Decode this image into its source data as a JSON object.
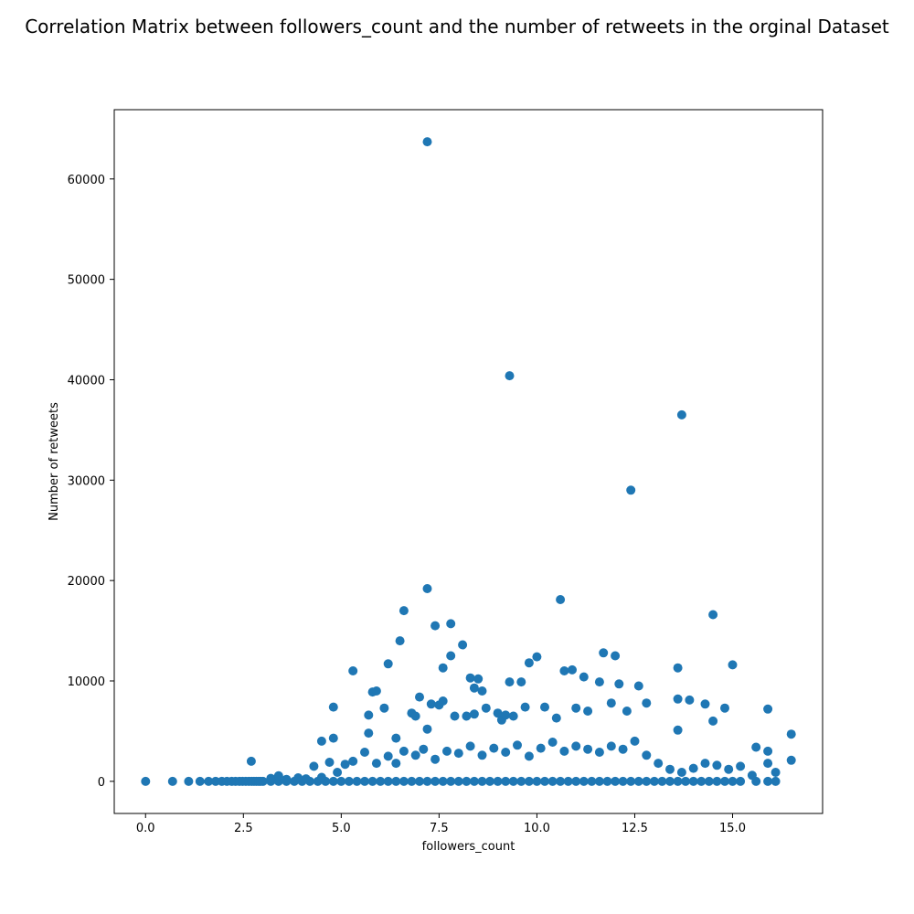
{
  "chart_data": {
    "type": "scatter",
    "title": "Correlation Matrix between followers_count and the number of retweets in the orginal Dataset",
    "xlabel": "followers_count",
    "ylabel": "Number of retweets",
    "xlim": [
      -0.8,
      17.3
    ],
    "ylim": [
      -3200,
      66900
    ],
    "xticks": [
      0.0,
      2.5,
      5.0,
      7.5,
      10.0,
      12.5,
      15.0
    ],
    "xtick_labels": [
      "0.0",
      "2.5",
      "5.0",
      "7.5",
      "10.0",
      "12.5",
      "15.0"
    ],
    "yticks": [
      0,
      10000,
      20000,
      30000,
      40000,
      50000,
      60000
    ],
    "ytick_labels": [
      "0",
      "10000",
      "20000",
      "30000",
      "40000",
      "50000",
      "60000"
    ],
    "grid": false,
    "color": "#1f77b4",
    "series": [
      {
        "points": [
          [
            0.0,
            0
          ],
          [
            0.69,
            0
          ],
          [
            1.1,
            0
          ],
          [
            1.39,
            0
          ],
          [
            1.61,
            0
          ],
          [
            1.79,
            0
          ],
          [
            1.95,
            0
          ],
          [
            2.08,
            0
          ],
          [
            2.2,
            0
          ],
          [
            2.3,
            0
          ],
          [
            2.4,
            0
          ],
          [
            2.48,
            0
          ],
          [
            2.56,
            0
          ],
          [
            2.64,
            0
          ],
          [
            2.71,
            0
          ],
          [
            2.77,
            0
          ],
          [
            2.83,
            0
          ],
          [
            2.89,
            0
          ],
          [
            2.94,
            0
          ],
          [
            3.0,
            0
          ],
          [
            3.2,
            0
          ],
          [
            3.4,
            0
          ],
          [
            3.6,
            0
          ],
          [
            3.8,
            0
          ],
          [
            4.0,
            0
          ],
          [
            4.2,
            0
          ],
          [
            4.4,
            0
          ],
          [
            4.6,
            0
          ],
          [
            4.8,
            0
          ],
          [
            5.0,
            0
          ],
          [
            5.2,
            0
          ],
          [
            5.4,
            0
          ],
          [
            5.6,
            0
          ],
          [
            5.8,
            0
          ],
          [
            6.0,
            0
          ],
          [
            6.2,
            0
          ],
          [
            6.4,
            0
          ],
          [
            6.6,
            0
          ],
          [
            6.8,
            0
          ],
          [
            7.0,
            0
          ],
          [
            7.2,
            0
          ],
          [
            7.4,
            0
          ],
          [
            7.6,
            0
          ],
          [
            7.8,
            0
          ],
          [
            8.0,
            0
          ],
          [
            8.2,
            0
          ],
          [
            8.4,
            0
          ],
          [
            8.6,
            0
          ],
          [
            8.8,
            0
          ],
          [
            9.0,
            0
          ],
          [
            9.2,
            0
          ],
          [
            9.4,
            0
          ],
          [
            9.6,
            0
          ],
          [
            9.8,
            0
          ],
          [
            10.0,
            0
          ],
          [
            10.2,
            0
          ],
          [
            10.4,
            0
          ],
          [
            10.6,
            0
          ],
          [
            10.8,
            0
          ],
          [
            11.0,
            0
          ],
          [
            11.2,
            0
          ],
          [
            11.4,
            0
          ],
          [
            11.6,
            0
          ],
          [
            11.8,
            0
          ],
          [
            12.0,
            0
          ],
          [
            12.2,
            0
          ],
          [
            12.4,
            0
          ],
          [
            12.6,
            0
          ],
          [
            12.8,
            0
          ],
          [
            13.0,
            0
          ],
          [
            13.2,
            0
          ],
          [
            13.4,
            0
          ],
          [
            13.6,
            0
          ],
          [
            13.8,
            0
          ],
          [
            14.0,
            0
          ],
          [
            14.2,
            0
          ],
          [
            14.4,
            0
          ],
          [
            14.6,
            0
          ],
          [
            14.8,
            0
          ],
          [
            15.0,
            0
          ],
          [
            15.2,
            0
          ],
          [
            15.6,
            0
          ],
          [
            15.9,
            0
          ],
          [
            16.1,
            0
          ],
          [
            3.2,
            300
          ],
          [
            3.4,
            550
          ],
          [
            3.6,
            200
          ],
          [
            3.9,
            350
          ],
          [
            4.1,
            250
          ],
          [
            4.3,
            1500
          ],
          [
            4.5,
            400
          ],
          [
            4.7,
            1900
          ],
          [
            4.9,
            900
          ],
          [
            5.1,
            1700
          ],
          [
            5.3,
            2000
          ],
          [
            5.6,
            2900
          ],
          [
            5.9,
            1800
          ],
          [
            6.2,
            2500
          ],
          [
            6.4,
            1800
          ],
          [
            6.6,
            3000
          ],
          [
            6.9,
            2600
          ],
          [
            7.1,
            3200
          ],
          [
            7.4,
            2200
          ],
          [
            7.7,
            3000
          ],
          [
            8.0,
            2800
          ],
          [
            8.3,
            3500
          ],
          [
            8.6,
            2600
          ],
          [
            8.9,
            3300
          ],
          [
            9.2,
            2900
          ],
          [
            9.5,
            3600
          ],
          [
            9.8,
            2500
          ],
          [
            10.1,
            3300
          ],
          [
            10.4,
            3900
          ],
          [
            10.7,
            3000
          ],
          [
            11.0,
            3500
          ],
          [
            11.3,
            3200
          ],
          [
            11.6,
            2900
          ],
          [
            11.9,
            3500
          ],
          [
            12.2,
            3200
          ],
          [
            12.5,
            4000
          ],
          [
            12.8,
            2600
          ],
          [
            13.1,
            1800
          ],
          [
            13.4,
            1200
          ],
          [
            13.7,
            900
          ],
          [
            14.0,
            1300
          ],
          [
            14.3,
            1800
          ],
          [
            14.6,
            1600
          ],
          [
            14.9,
            1200
          ],
          [
            15.2,
            1500
          ],
          [
            15.5,
            600
          ],
          [
            2.7,
            2000
          ],
          [
            4.5,
            4000
          ],
          [
            4.8,
            7400
          ],
          [
            4.8,
            4300
          ],
          [
            5.3,
            11000
          ],
          [
            5.7,
            6600
          ],
          [
            5.7,
            4800
          ],
          [
            5.8,
            8900
          ],
          [
            5.9,
            9000
          ],
          [
            6.1,
            7300
          ],
          [
            6.2,
            11700
          ],
          [
            6.4,
            4300
          ],
          [
            6.5,
            14000
          ],
          [
            6.6,
            17000
          ],
          [
            6.8,
            6800
          ],
          [
            6.9,
            6500
          ],
          [
            7.0,
            8400
          ],
          [
            7.2,
            19200
          ],
          [
            7.2,
            5200
          ],
          [
            7.3,
            7700
          ],
          [
            7.4,
            15500
          ],
          [
            7.5,
            7600
          ],
          [
            7.6,
            8000
          ],
          [
            7.6,
            11300
          ],
          [
            7.8,
            12500
          ],
          [
            7.8,
            15700
          ],
          [
            7.9,
            6500
          ],
          [
            8.1,
            13600
          ],
          [
            8.2,
            6500
          ],
          [
            8.3,
            10300
          ],
          [
            8.4,
            6700
          ],
          [
            8.4,
            9300
          ],
          [
            8.5,
            10200
          ],
          [
            8.6,
            9000
          ],
          [
            8.7,
            7300
          ],
          [
            9.0,
            6800
          ],
          [
            9.1,
            6100
          ],
          [
            9.2,
            6600
          ],
          [
            9.3,
            9900
          ],
          [
            9.4,
            6500
          ],
          [
            9.6,
            9900
          ],
          [
            9.7,
            7400
          ],
          [
            9.8,
            11800
          ],
          [
            10.0,
            12400
          ],
          [
            10.2,
            7400
          ],
          [
            10.5,
            6300
          ],
          [
            10.6,
            18100
          ],
          [
            10.7,
            11000
          ],
          [
            10.9,
            11100
          ],
          [
            11.0,
            7300
          ],
          [
            11.2,
            10400
          ],
          [
            11.3,
            7000
          ],
          [
            11.6,
            9900
          ],
          [
            11.7,
            12800
          ],
          [
            11.9,
            7800
          ],
          [
            12.0,
            12500
          ],
          [
            12.1,
            9700
          ],
          [
            12.3,
            7000
          ],
          [
            12.6,
            9500
          ],
          [
            12.8,
            7800
          ],
          [
            13.6,
            11300
          ],
          [
            13.6,
            8200
          ],
          [
            13.6,
            5100
          ],
          [
            13.9,
            8100
          ],
          [
            14.3,
            7700
          ],
          [
            14.5,
            16600
          ],
          [
            14.5,
            6000
          ],
          [
            14.8,
            7300
          ],
          [
            15.0,
            11600
          ],
          [
            15.6,
            3400
          ],
          [
            15.9,
            7200
          ],
          [
            15.9,
            3000
          ],
          [
            15.9,
            1800
          ],
          [
            16.1,
            900
          ],
          [
            16.5,
            4700
          ],
          [
            16.5,
            2100
          ],
          [
            7.2,
            63700
          ],
          [
            9.3,
            40400
          ],
          [
            13.7,
            36500
          ],
          [
            12.4,
            29000
          ]
        ]
      }
    ]
  }
}
